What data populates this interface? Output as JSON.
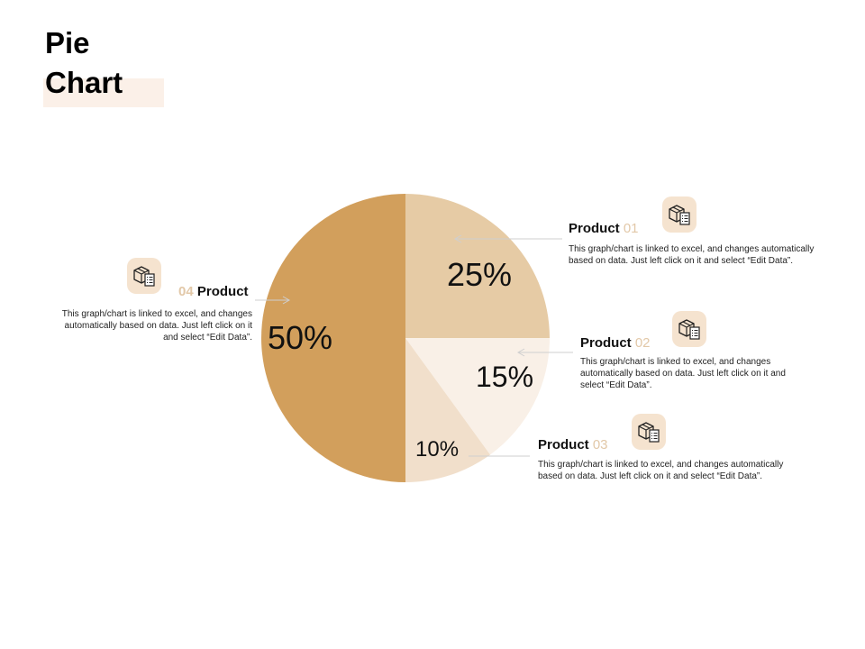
{
  "page": {
    "title_line1": "Pie",
    "title_line2": "Chart"
  },
  "chart_data": {
    "type": "pie",
    "categories": [
      "Product 01",
      "Product 02",
      "Product 03",
      "04 Product"
    ],
    "values": [
      25,
      15,
      10,
      50
    ],
    "labels": [
      "25%",
      "15%",
      "10%",
      "50%"
    ],
    "colors": [
      "#e6cba5",
      "#f9f0e7",
      "#f1dfcb",
      "#d29f5c"
    ],
    "title": "Pie Chart"
  },
  "annotations": [
    {
      "name_pre": "",
      "name": "Product",
      "number": "01",
      "description": "This graph/chart is linked to excel, and changes automatically based on data. Just left click on it and select “Edit Data”.",
      "icon": "package-checklist-icon"
    },
    {
      "name_pre": "",
      "name": "Product",
      "number": "02",
      "description": "This graph/chart is linked to excel, and changes automatically based on data. Just left click on it and select “Edit Data”.",
      "icon": "package-checklist-icon"
    },
    {
      "name_pre": "",
      "name": "Product",
      "number": "03",
      "description": "This graph/chart is linked to excel, and changes automatically based on data. Just left click on it and select “Edit Data”.",
      "icon": "package-checklist-icon"
    },
    {
      "name_pre": "04",
      "name": "Product",
      "number": "",
      "description": "This graph/chart is linked to excel, and changes automatically based on data. Just left click on it and select “Edit Data”.",
      "icon": "package-checklist-icon"
    }
  ]
}
